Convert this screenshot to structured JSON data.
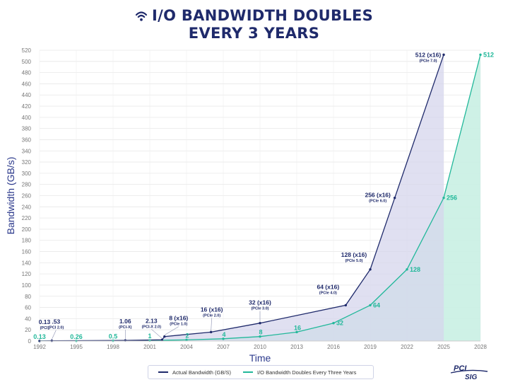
{
  "header": {
    "title_line1": "I/O BANDWIDTH DOUBLES",
    "title_line2": "EVERY 3 YEARS",
    "icon": "wifi-icon"
  },
  "logo": {
    "text_top": "PCI",
    "text_bottom": "SIG"
  },
  "colors": {
    "actual": "#1f2a6b",
    "actual_fill": "#d6d5ec",
    "doubling": "#22b89a",
    "doubling_fill": "#c9efe3",
    "title": "#1f2a6b",
    "grid": "#e8e8e8"
  },
  "chart_data": {
    "type": "area",
    "title": "I/O BANDWIDTH DOUBLES EVERY 3 YEARS",
    "xlabel": "Time",
    "ylabel": "Bandwidth (GB/s)",
    "xlim": [
      1992,
      2028
    ],
    "ylim": [
      0,
      520
    ],
    "x_ticks": [
      1992,
      1995,
      1998,
      2001,
      2004,
      2007,
      2010,
      2013,
      2016,
      2019,
      2022,
      2025,
      2028
    ],
    "y_ticks": [
      0,
      20,
      40,
      60,
      80,
      100,
      120,
      140,
      160,
      180,
      200,
      220,
      240,
      260,
      280,
      300,
      320,
      340,
      360,
      380,
      400,
      420,
      440,
      460,
      480,
      500,
      520
    ],
    "grid": true,
    "legend_position": "bottom-center",
    "series": [
      {
        "name": "Actual Bandwidth (GB/S)",
        "points": [
          {
            "x": 1992,
            "y": 0.13
          },
          {
            "x": 1993,
            "y": 0.53
          },
          {
            "x": 1999,
            "y": 1.06
          },
          {
            "x": 2002,
            "y": 2.13
          },
          {
            "x": 2002.2,
            "y": 8
          },
          {
            "x": 2006,
            "y": 16
          },
          {
            "x": 2010,
            "y": 32
          },
          {
            "x": 2017,
            "y": 64
          },
          {
            "x": 2019,
            "y": 128
          },
          {
            "x": 2021,
            "y": 256
          },
          {
            "x": 2025,
            "y": 512
          }
        ],
        "labels": [
          {
            "main": "0.13",
            "sub": "(PCI)"
          },
          {
            "main": ".53",
            "sub": "(PCI 2.0)"
          },
          {
            "main": "1.06",
            "sub": "(PCI-X)"
          },
          {
            "main": "2.13",
            "sub": "(PCI-X 2.0)"
          },
          {
            "main": "8 (x16)",
            "sub": "(PCIe 1.0)"
          },
          {
            "main": "16 (x16)",
            "sub": "(PCIe 2.0)"
          },
          {
            "main": "32 (x16)",
            "sub": "(PCIe 3.0)"
          },
          {
            "main": "64 (x16)",
            "sub": "(PCIe 4.0)"
          },
          {
            "main": "128 (x16)",
            "sub": "(PCIe 5.0)"
          },
          {
            "main": "256 (x16)",
            "sub": "(PCIe 6.0)"
          },
          {
            "main": "512 (x16)",
            "sub": "(PCIe 7.0)"
          }
        ]
      },
      {
        "name": "I/O Bandwidth Doubles Every Three Years",
        "points": [
          {
            "x": 1992,
            "y": 0.13
          },
          {
            "x": 1995,
            "y": 0.26
          },
          {
            "x": 1998,
            "y": 0.5
          },
          {
            "x": 2001,
            "y": 1
          },
          {
            "x": 2004,
            "y": 2
          },
          {
            "x": 2007,
            "y": 4
          },
          {
            "x": 2010,
            "y": 8
          },
          {
            "x": 2013,
            "y": 16
          },
          {
            "x": 2016,
            "y": 32
          },
          {
            "x": 2019,
            "y": 64
          },
          {
            "x": 2022,
            "y": 128
          },
          {
            "x": 2025,
            "y": 256
          },
          {
            "x": 2028,
            "y": 512
          }
        ],
        "labels": [
          "0.13",
          "0.26",
          "0.5",
          "1",
          "2",
          "4",
          "8",
          "16",
          "32",
          "64",
          "128",
          "256",
          "512"
        ]
      }
    ]
  }
}
